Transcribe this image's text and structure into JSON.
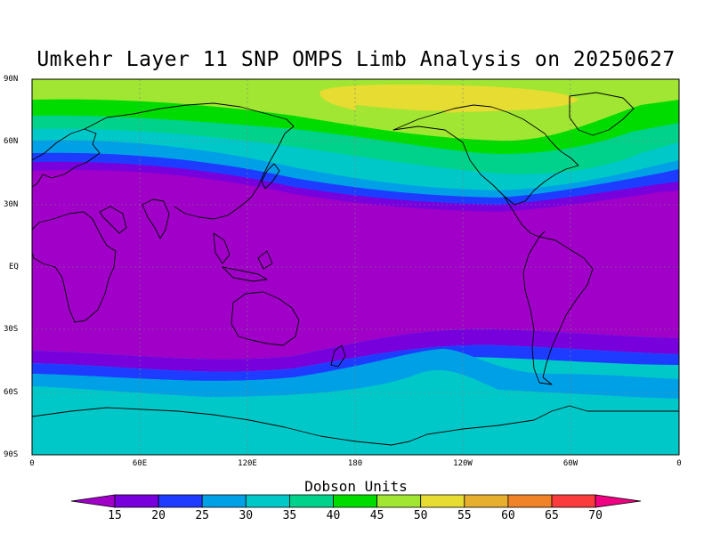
{
  "title": "Umkehr Layer 11 SNP OMPS Limb Analysis on 20250627",
  "lat_ticks": [
    "90N",
    "60N",
    "30N",
    "EQ",
    "30S",
    "60S",
    "90S"
  ],
  "lon_ticks": [
    "0",
    "60E",
    "120E",
    "180",
    "120W",
    "60W",
    "0"
  ],
  "colorbar": {
    "title": "Dobson Units",
    "ticks": [
      "15",
      "20",
      "25",
      "30",
      "35",
      "40",
      "45",
      "50",
      "55",
      "60",
      "65",
      "70"
    ],
    "colors": [
      "#a000c8",
      "#7800dc",
      "#1e3cff",
      "#00a0e6",
      "#00c8c8",
      "#00d28c",
      "#00dc00",
      "#a0e632",
      "#e6dc32",
      "#e6af2d",
      "#f08228",
      "#fa3c3c",
      "#f00082"
    ]
  },
  "colors": {
    "purple": "#a000c8",
    "violet": "#7800dc",
    "blue": "#1e3cff",
    "lightblue": "#00a0e6",
    "cyan": "#00c8c8",
    "teal": "#00d28c",
    "green": "#00dc00",
    "lightgreen": "#a0e632",
    "yellow": "#e6dc32"
  }
}
